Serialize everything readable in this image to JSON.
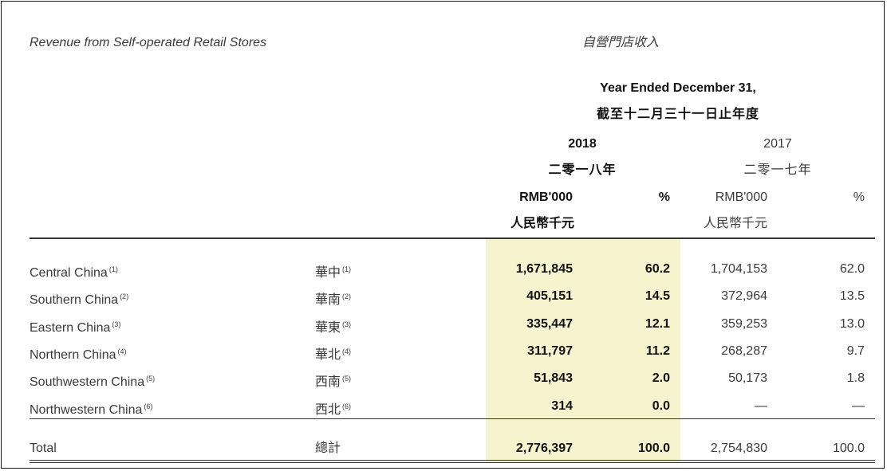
{
  "caption_en": "Revenue from Self-operated Retail Stores",
  "caption_zh": "自營門店收入",
  "period_en": "Year Ended December 31,",
  "period_zh": "截至十二月三十一日止年度",
  "year_2018": "2018",
  "year_2018_zh": "二零一八年",
  "year_2017": "2017",
  "year_2017_zh": "二零一七年",
  "col_rmb": "RMB'000",
  "col_rmb_zh": "人民幣千元",
  "col_pct": "%",
  "rows": [
    {
      "name_en": "Central China",
      "note": "(1)",
      "name_zh": "華中",
      "v2018": "1,671,845",
      "p2018": "60.2",
      "v2017": "1,704,153",
      "p2017": "62.0"
    },
    {
      "name_en": "Southern China",
      "note": "(2)",
      "name_zh": "華南",
      "v2018": "405,151",
      "p2018": "14.5",
      "v2017": "372,964",
      "p2017": "13.5"
    },
    {
      "name_en": "Eastern China",
      "note": "(3)",
      "name_zh": "華東",
      "v2018": "335,447",
      "p2018": "12.1",
      "v2017": "359,253",
      "p2017": "13.0"
    },
    {
      "name_en": "Northern China",
      "note": "(4)",
      "name_zh": "華北",
      "v2018": "311,797",
      "p2018": "11.2",
      "v2017": "268,287",
      "p2017": "9.7"
    },
    {
      "name_en": "Southwestern China",
      "note": "(5)",
      "name_zh": "西南",
      "v2018": "51,843",
      "p2018": "2.0",
      "v2017": "50,173",
      "p2017": "1.8"
    },
    {
      "name_en": "Northwestern China",
      "note": "(6)",
      "name_zh": "西北",
      "v2018": "314",
      "p2018": "0.0",
      "v2017": "—",
      "p2017": "—"
    }
  ],
  "total": {
    "name_en": "Total",
    "name_zh": "總計",
    "v2018": "2,776,397",
    "p2018": "100.0",
    "v2017": "2,754,830",
    "p2017": "100.0"
  }
}
